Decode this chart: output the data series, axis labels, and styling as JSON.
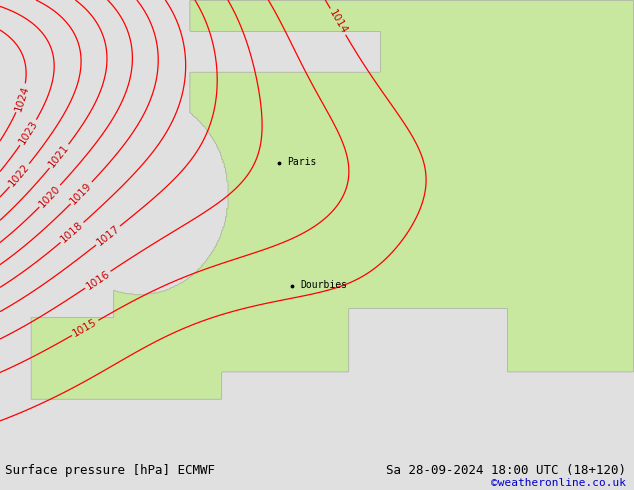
{
  "title_left": "Surface pressure [hPa] ECMWF",
  "title_right": "Sa 28-09-2024 18:00 UTC (18+120)",
  "title_right2": "©weatheronline.co.uk",
  "bg_color": "#e0e0e0",
  "land_color": "#c8e8a0",
  "sea_color": "#d2d2d2",
  "coast_color": "#aaaaaa",
  "contour_color_red": "#ff0000",
  "label_color_red": "#cc0000",
  "text_color_blue": "#0000cc",
  "figsize": [
    6.34,
    4.9
  ],
  "dpi": 100,
  "bottom_bar_color": "#c8c8c8",
  "font_size_label": 7.5,
  "font_size_bottom": 9,
  "font_size_credit": 8
}
